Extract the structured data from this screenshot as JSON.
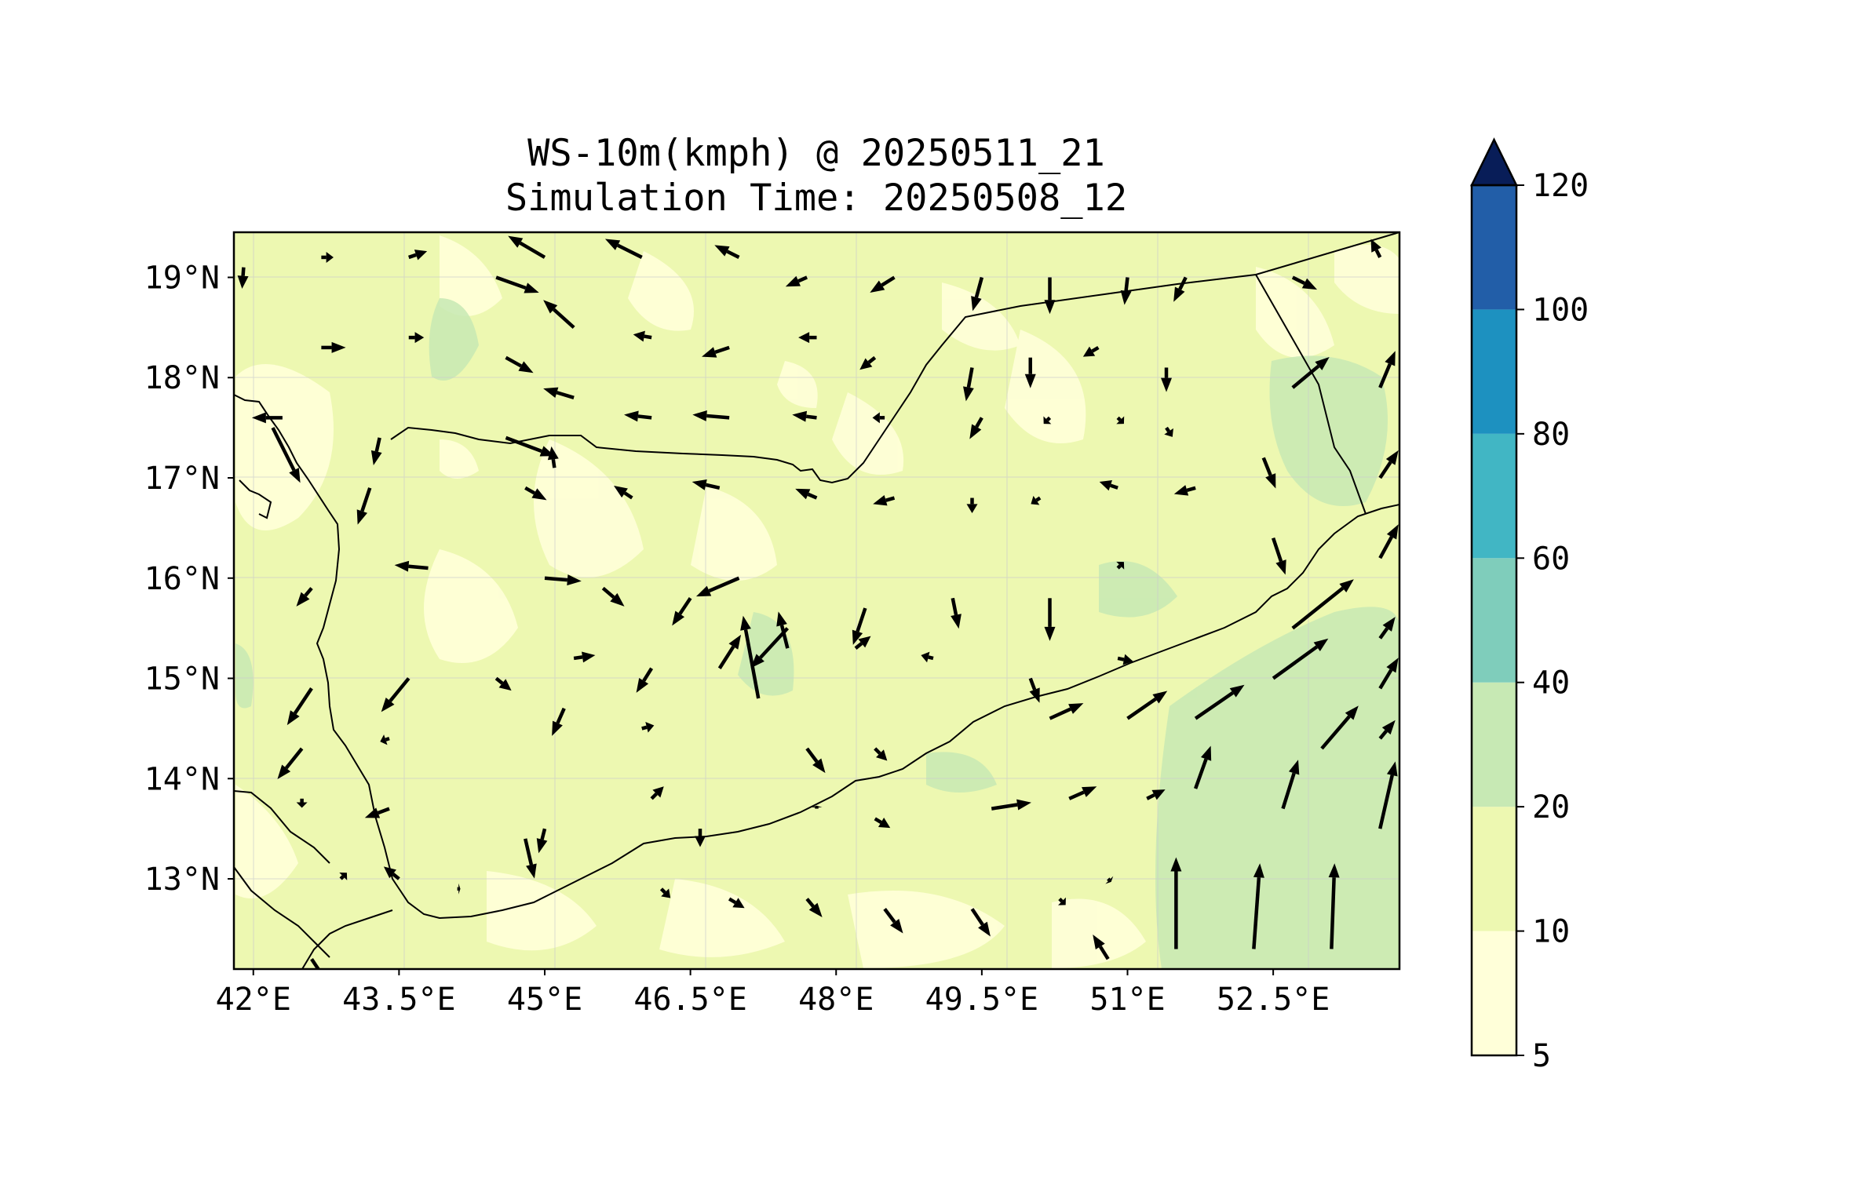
{
  "chart_data": {
    "type": "wind-vector-map",
    "title_line1": "WS-10m(kmph) @ 20250511_21",
    "title_line2": "Simulation Time: 20250508_12",
    "lon_range": [
      41.8,
      53.8
    ],
    "lat_range": [
      12.1,
      19.45
    ],
    "x_ticks": [
      {
        "value": 42,
        "label": "42°E"
      },
      {
        "value": 43.5,
        "label": "43.5°E"
      },
      {
        "value": 45,
        "label": "45°E"
      },
      {
        "value": 46.5,
        "label": "46.5°E"
      },
      {
        "value": 48,
        "label": "48°E"
      },
      {
        "value": 49.5,
        "label": "49.5°E"
      },
      {
        "value": 51,
        "label": "51°E"
      },
      {
        "value": 52.5,
        "label": "52.5°E"
      }
    ],
    "y_ticks": [
      {
        "value": 19,
        "label": "19°N"
      },
      {
        "value": 18,
        "label": "18°N"
      },
      {
        "value": 17,
        "label": "17°N"
      },
      {
        "value": 16,
        "label": "16°N"
      },
      {
        "value": 15,
        "label": "15°N"
      },
      {
        "value": 14,
        "label": "14°N"
      },
      {
        "value": 13,
        "label": "13°N"
      }
    ],
    "grid": true,
    "colorbar": {
      "extend": "max",
      "levels": [
        5,
        10,
        20,
        40,
        60,
        80,
        100,
        120
      ],
      "labels": [
        "5",
        "10",
        "20",
        "40",
        "60",
        "80",
        "100",
        "120"
      ],
      "colors": [
        "#ffffd9",
        "#edf8b1",
        "#c7e9b4",
        "#7fcdbb",
        "#41b6c4",
        "#1d91c0",
        "#225ea8",
        "#0c2c84"
      ],
      "extend_color": "#081d58"
    },
    "wind_vectors_kmph": [
      [
        41.9,
        19.1,
        -0.5,
        -7
      ],
      [
        42.7,
        19.2,
        4,
        0
      ],
      [
        43.6,
        19.2,
        6,
        2
      ],
      [
        44.5,
        19.0,
        14,
        -5
      ],
      [
        45.0,
        19.2,
        -12,
        7
      ],
      [
        46.0,
        19.2,
        -12,
        6
      ],
      [
        47.0,
        19.2,
        -8,
        4
      ],
      [
        47.7,
        19.0,
        -7,
        -3
      ],
      [
        48.6,
        19.0,
        -8,
        -5
      ],
      [
        49.5,
        19.0,
        -3,
        -11
      ],
      [
        50.2,
        19.0,
        0,
        -12
      ],
      [
        51.0,
        19.0,
        -1,
        -9
      ],
      [
        51.6,
        19.0,
        -4,
        -8
      ],
      [
        52.7,
        19.0,
        8,
        -4
      ],
      [
        53.6,
        19.2,
        -3,
        6
      ],
      [
        42.7,
        18.3,
        8,
        0
      ],
      [
        43.6,
        18.4,
        5,
        0
      ],
      [
        44.6,
        18.2,
        9,
        -5
      ],
      [
        45.3,
        18.5,
        -10,
        9
      ],
      [
        46.1,
        18.4,
        -6,
        1
      ],
      [
        46.9,
        18.3,
        -9,
        -3
      ],
      [
        47.8,
        18.4,
        -6,
        0
      ],
      [
        48.4,
        18.2,
        -5,
        -4
      ],
      [
        49.4,
        18.1,
        -2,
        -11
      ],
      [
        50.0,
        18.2,
        0,
        -10
      ],
      [
        50.7,
        18.3,
        -5,
        -3
      ],
      [
        51.4,
        18.1,
        0,
        -8
      ],
      [
        52.7,
        17.9,
        12,
        10
      ],
      [
        53.6,
        17.9,
        5,
        12
      ],
      [
        42.3,
        17.6,
        -10,
        0
      ],
      [
        43.3,
        17.4,
        -2,
        -9
      ],
      [
        44.6,
        17.4,
        16,
        -6
      ],
      [
        45.3,
        17.8,
        -10,
        3
      ],
      [
        46.1,
        17.6,
        -9,
        1
      ],
      [
        46.9,
        17.6,
        -12,
        1
      ],
      [
        47.8,
        17.6,
        -8,
        1
      ],
      [
        48.5,
        17.6,
        -4,
        0
      ],
      [
        49.5,
        17.6,
        -4,
        -7
      ],
      [
        50.2,
        17.6,
        -2,
        -2
      ],
      [
        50.9,
        17.6,
        2,
        -2
      ],
      [
        51.4,
        17.5,
        2,
        -3
      ],
      [
        52.4,
        17.2,
        4,
        -10
      ],
      [
        53.6,
        17.0,
        6,
        9
      ],
      [
        42.2,
        17.5,
        9,
        -18
      ],
      [
        43.2,
        16.9,
        -4,
        -12
      ],
      [
        44.8,
        16.9,
        7,
        -4
      ],
      [
        45.1,
        17.1,
        -1,
        7
      ],
      [
        45.9,
        16.8,
        -6,
        4
      ],
      [
        46.8,
        16.9,
        -9,
        2
      ],
      [
        47.8,
        16.8,
        -7,
        3
      ],
      [
        48.6,
        16.8,
        -7,
        -2
      ],
      [
        49.4,
        16.8,
        0,
        -5
      ],
      [
        50.1,
        16.8,
        -3,
        -2
      ],
      [
        50.9,
        16.9,
        -6,
        2
      ],
      [
        51.7,
        16.9,
        -7,
        -2
      ],
      [
        52.5,
        16.4,
        4,
        -12
      ],
      [
        53.6,
        16.2,
        6,
        11
      ],
      [
        42.6,
        15.9,
        -5,
        -6
      ],
      [
        43.8,
        16.1,
        -11,
        1
      ],
      [
        45.0,
        16.0,
        12,
        -1
      ],
      [
        45.6,
        15.9,
        7,
        -6
      ],
      [
        46.5,
        15.8,
        -6,
        -9
      ],
      [
        47.0,
        16.0,
        -14,
        -6
      ],
      [
        47.5,
        15.5,
        -12,
        -13
      ],
      [
        48.3,
        15.7,
        -4,
        -12
      ],
      [
        49.2,
        15.8,
        2,
        -10
      ],
      [
        50.2,
        15.8,
        0,
        -14
      ],
      [
        50.9,
        16.1,
        2,
        2
      ],
      [
        52.7,
        15.5,
        20,
        16
      ],
      [
        53.6,
        15.4,
        5,
        7
      ],
      [
        42.6,
        14.9,
        -8,
        -12
      ],
      [
        43.6,
        15.0,
        -9,
        -11
      ],
      [
        44.5,
        15.0,
        5,
        -4
      ],
      [
        45.3,
        15.2,
        7,
        1
      ],
      [
        46.1,
        15.1,
        -5,
        -8
      ],
      [
        46.8,
        15.1,
        7,
        11
      ],
      [
        47.2,
        14.8,
        -5,
        27
      ],
      [
        47.5,
        15.3,
        -3,
        12
      ],
      [
        48.2,
        15.3,
        5,
        4
      ],
      [
        49.0,
        15.2,
        -4,
        1
      ],
      [
        50.0,
        15.0,
        3,
        -8
      ],
      [
        50.9,
        15.2,
        5,
        -1
      ],
      [
        52.5,
        15.0,
        18,
        13
      ],
      [
        53.6,
        14.9,
        6,
        10
      ],
      [
        42.5,
        14.3,
        -8,
        -10
      ],
      [
        43.4,
        14.4,
        -3,
        -1
      ],
      [
        44.0,
        14.4,
        0,
        0
      ],
      [
        45.2,
        14.7,
        -4,
        -9
      ],
      [
        46.0,
        14.5,
        4,
        1
      ],
      [
        47.7,
        14.3,
        6,
        -8
      ],
      [
        48.4,
        14.3,
        4,
        -4
      ],
      [
        50.2,
        14.6,
        11,
        5
      ],
      [
        51.0,
        14.6,
        13,
        9
      ],
      [
        51.7,
        14.6,
        16,
        11
      ],
      [
        53.0,
        14.3,
        12,
        14
      ],
      [
        53.6,
        14.4,
        5,
        6
      ],
      [
        42.5,
        13.8,
        0,
        -3
      ],
      [
        43.4,
        13.7,
        -8,
        -3
      ],
      [
        44.8,
        13.4,
        3,
        -13
      ],
      [
        45.0,
        13.5,
        -2,
        -8
      ],
      [
        46.1,
        13.8,
        4,
        4
      ],
      [
        46.6,
        13.5,
        0,
        -6
      ],
      [
        47.8,
        13.7,
        0,
        1
      ],
      [
        48.4,
        13.6,
        5,
        -3
      ],
      [
        49.6,
        13.7,
        13,
        2
      ],
      [
        50.4,
        13.8,
        9,
        4
      ],
      [
        51.2,
        13.8,
        6,
        3
      ],
      [
        51.7,
        13.9,
        5,
        14
      ],
      [
        52.6,
        13.7,
        5,
        16
      ],
      [
        53.6,
        13.5,
        5,
        22
      ],
      [
        42.9,
        13.0,
        2,
        2
      ],
      [
        43.5,
        13.0,
        -5,
        4
      ],
      [
        44.1,
        12.9,
        1,
        0
      ],
      [
        45.0,
        13.0,
        0,
        0
      ],
      [
        46.2,
        12.9,
        3,
        -3
      ],
      [
        46.9,
        12.8,
        5,
        -3
      ],
      [
        47.7,
        12.8,
        5,
        -6
      ],
      [
        48.5,
        12.7,
        6,
        -8
      ],
      [
        49.4,
        12.7,
        6,
        -9
      ],
      [
        50.3,
        12.8,
        2,
        -2
      ],
      [
        50.8,
        13.0,
        1,
        -1
      ],
      [
        51.5,
        12.3,
        0,
        30
      ],
      [
        52.3,
        12.3,
        2,
        28
      ],
      [
        53.1,
        12.3,
        1,
        28
      ],
      [
        42.6,
        12.2,
        8,
        -12
      ],
      [
        50.8,
        12.2,
        -5,
        8
      ]
    ]
  }
}
